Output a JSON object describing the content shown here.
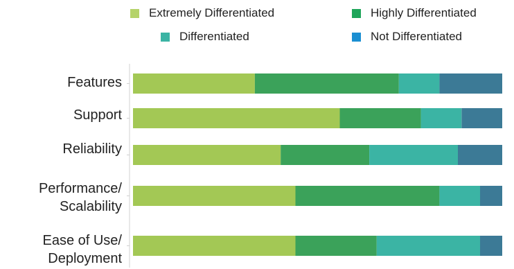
{
  "chart_data": {
    "type": "bar",
    "orientation": "horizontal",
    "stacked": true,
    "normalized": true,
    "title": "",
    "xlabel": "",
    "ylabel": "",
    "xlim": [
      0,
      100
    ],
    "grid": false,
    "legend_position": "top",
    "categories": [
      "Features",
      "Support",
      "Reliability",
      "Performance/\nScalability",
      "Ease of Use/\nDeployment"
    ],
    "series": [
      {
        "name": "Extremely Differentiated",
        "color": "#a3c855",
        "values": [
          33,
          56,
          40,
          44,
          44
        ]
      },
      {
        "name": "Highly Differentiated",
        "color": "#3ba25a",
        "values": [
          39,
          22,
          24,
          39,
          22
        ]
      },
      {
        "name": "Differentiated",
        "color": "#3bb4a4",
        "values": [
          11,
          11,
          24,
          11,
          28
        ]
      },
      {
        "name": "Not Differentiated",
        "color": "#3c7a96",
        "values": [
          17,
          11,
          12,
          6,
          6
        ]
      }
    ]
  },
  "legend": [
    {
      "label": "Extremely Differentiated",
      "color": "#b5d36a"
    },
    {
      "label": "Highly Differentiated",
      "color": "#1fa55a"
    },
    {
      "label": "Differentiated",
      "color": "#3bb4a4"
    },
    {
      "label": "Not Differentiated",
      "color": "#1b8fd2"
    }
  ]
}
